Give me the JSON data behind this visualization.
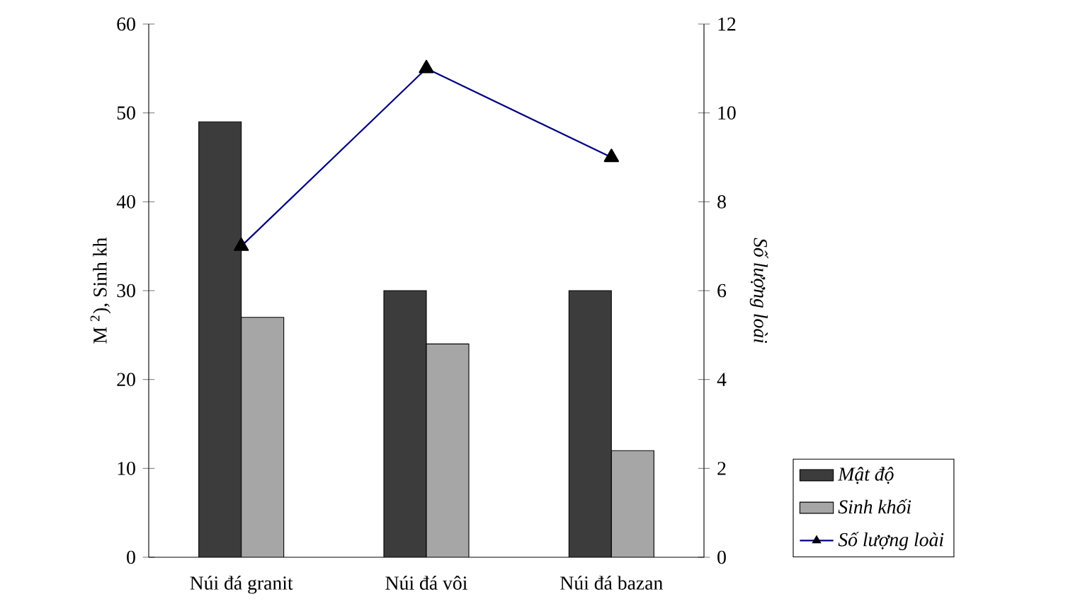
{
  "chart_data": {
    "type": "bar",
    "ylabel": "M $^{2}$), Sinh kh",
    "y2label": "Số lượng loài",
    "categories": [
      "Núi đá granit",
      "Núi đá vôi",
      "Núi đá bazan"
    ],
    "series": [
      {
        "name": "Mật độ",
        "color": "#3c3c3c",
        "values": [
          49,
          30,
          30
        ]
      },
      {
        "name": "Sinh khối",
        "color": "#a6a6a6",
        "values": [
          27,
          24,
          12
        ]
      },
      {
        "name": "Số lượng loài",
        "type": "line",
        "axis": "y2",
        "color": "#000080",
        "marker": "triangle",
        "values": [
          7,
          11,
          9
        ]
      }
    ],
    "ylim": [
      0,
      60
    ],
    "yticks": [
      0,
      10,
      20,
      30,
      40,
      50,
      60
    ],
    "y2lim": [
      0,
      12
    ],
    "y2ticks": [
      0,
      2,
      4,
      6,
      8,
      10,
      12
    ],
    "legend": "bottom right",
    "grid": false
  }
}
